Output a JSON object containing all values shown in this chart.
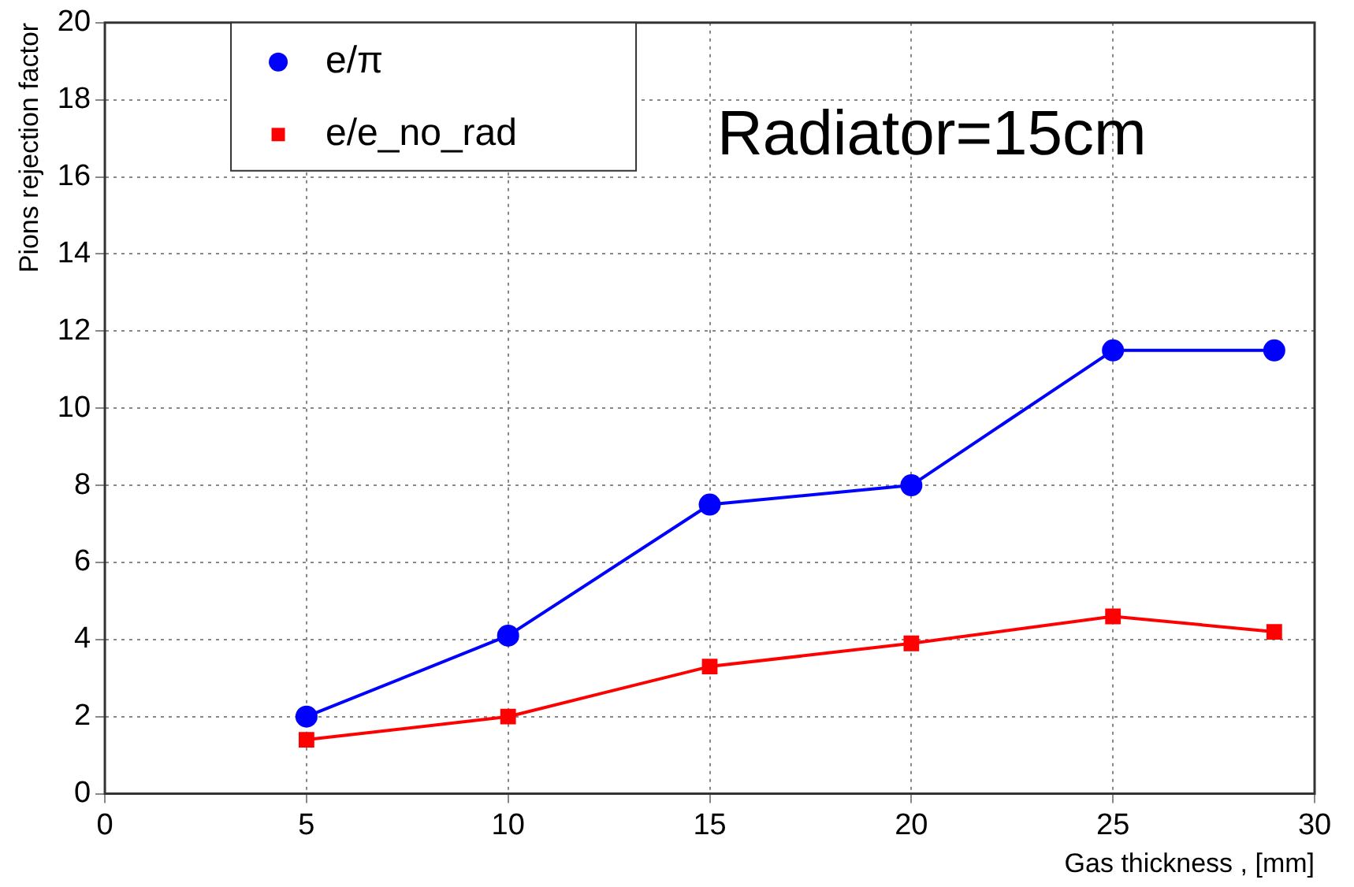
{
  "chart_data": {
    "type": "line",
    "xlabel": "Gas thickness , [mm]",
    "ylabel": "Pions rejection factor",
    "annotations": [
      "Radiator=15cm"
    ],
    "x": [
      5,
      10,
      15,
      20,
      25,
      29
    ],
    "series": [
      {
        "name": "e/π",
        "color": "#0000ff",
        "marker": "circle",
        "values": [
          2,
          4.1,
          7.5,
          8,
          11.5,
          11.5
        ]
      },
      {
        "name": "e/e_no_rad",
        "color": "#ff0000",
        "marker": "square",
        "values": [
          1.4,
          2,
          3.3,
          3.9,
          4.6,
          4.2
        ]
      }
    ],
    "xlim": [
      0,
      30
    ],
    "xticks": [
      0,
      5,
      10,
      15,
      20,
      25,
      30
    ],
    "ylim": [
      0,
      20
    ],
    "yticks": [
      0,
      2,
      4,
      6,
      8,
      10,
      12,
      14,
      16,
      18,
      20
    ],
    "grid": true,
    "legend": "top left",
    "line_style": "solid"
  }
}
